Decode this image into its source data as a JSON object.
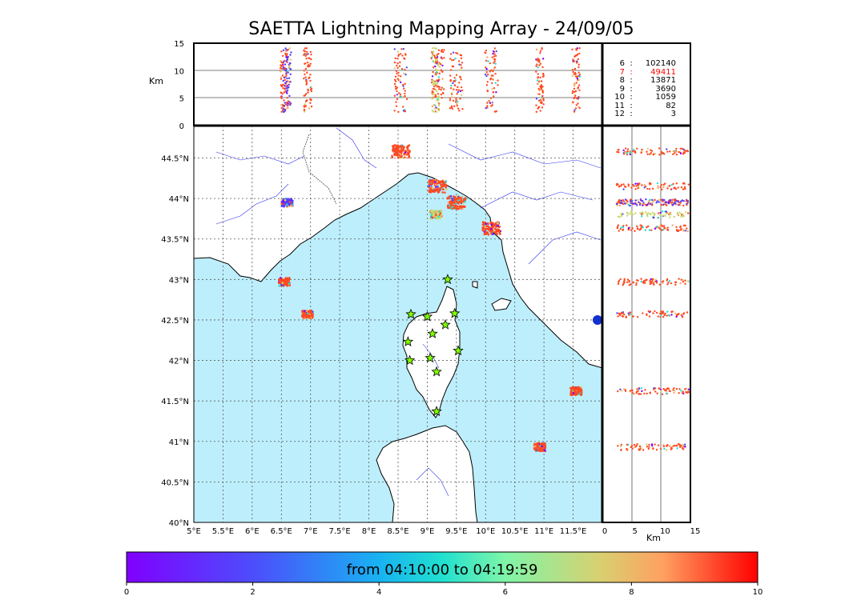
{
  "title": "SAETTA Lightning Mapping Array - 24/09/05",
  "time_range_label": "from 04:10:00 to 04:19:59",
  "colors": {
    "sea": "#bdeefc",
    "highlight": "#ff0000",
    "grid": "#555555",
    "coast": "#000000",
    "rivers": "#3333ee"
  },
  "top_panel": {
    "ylabel": "Km",
    "yticks": [
      "0",
      "5",
      "10",
      "15"
    ]
  },
  "side_panel": {
    "xlabel": "Km",
    "xticks": [
      "0",
      "5",
      "10",
      "15"
    ]
  },
  "map": {
    "lon_ticks": [
      "5°E",
      "5.5°E",
      "6°E",
      "6.5°E",
      "7°E",
      "7.5°E",
      "8°E",
      "8.5°E",
      "9°E",
      "9.5°E",
      "10°E",
      "10.5°E",
      "11°E",
      "11.5°E"
    ],
    "lat_ticks": [
      "40°N",
      "40.5°N",
      "41°N",
      "41.5°N",
      "42°N",
      "42.5°N",
      "43°N",
      "43.5°N",
      "44°N",
      "44.5°N"
    ]
  },
  "station_counts": [
    {
      "stations": "6",
      "count": "102140",
      "highlight": false
    },
    {
      "stations": "7",
      "count": "49411",
      "highlight": true
    },
    {
      "stations": "8",
      "count": "13871",
      "highlight": false
    },
    {
      "stations": "9",
      "count": "3690",
      "highlight": false
    },
    {
      "stations": "10",
      "count": "1059",
      "highlight": false
    },
    {
      "stations": "11",
      "count": "82",
      "highlight": false
    },
    {
      "stations": "12",
      "count": "3",
      "highlight": false
    }
  ],
  "colorbar": {
    "ticks": [
      "0",
      "2",
      "4",
      "6",
      "8",
      "10"
    ],
    "min": 0,
    "max": 10,
    "colormap": "rainbow"
  },
  "stations_markers": [
    {
      "lon": 9.35,
      "lat": 43.0
    },
    {
      "lon": 8.72,
      "lat": 42.57
    },
    {
      "lon": 9.0,
      "lat": 42.54
    },
    {
      "lon": 9.47,
      "lat": 42.58
    },
    {
      "lon": 9.31,
      "lat": 42.44
    },
    {
      "lon": 9.09,
      "lat": 42.33
    },
    {
      "lon": 8.67,
      "lat": 42.23
    },
    {
      "lon": 9.53,
      "lat": 42.12
    },
    {
      "lon": 8.7,
      "lat": 42.0
    },
    {
      "lon": 9.05,
      "lat": 42.03
    },
    {
      "lon": 9.16,
      "lat": 41.86
    },
    {
      "lon": 9.16,
      "lat": 41.37
    }
  ],
  "lightning_clusters": [
    {
      "name": "ligurian-coast",
      "lon": 8.55,
      "lat": 44.58,
      "color": "#ff4a20"
    },
    {
      "name": "la-spezia",
      "lon": 9.18,
      "lat": 44.15,
      "color": "#ff4a20"
    },
    {
      "name": "versilia",
      "lon": 9.5,
      "lat": 43.95,
      "color": "#ff4a20"
    },
    {
      "name": "livorno",
      "lon": 10.1,
      "lat": 43.63,
      "color": "#ff4a20"
    },
    {
      "name": "gulf-genoa-offshore",
      "lon": 9.15,
      "lat": 43.8,
      "color": "#c8d870"
    },
    {
      "name": "cote-dazur",
      "lon": 6.55,
      "lat": 42.97,
      "color": "#ff4a20"
    },
    {
      "name": "west-corsica-sea",
      "lon": 6.95,
      "lat": 42.57,
      "color": "#ff4a20"
    },
    {
      "name": "tyrrhenian-south",
      "lon": 10.93,
      "lat": 40.93,
      "color": "#ff4a20"
    },
    {
      "name": "giglio-area",
      "lon": 11.55,
      "lat": 41.62,
      "color": "#ff4a20"
    },
    {
      "name": "provence-interior",
      "lon": 6.6,
      "lat": 43.95,
      "color": "#5a3cff"
    }
  ]
}
